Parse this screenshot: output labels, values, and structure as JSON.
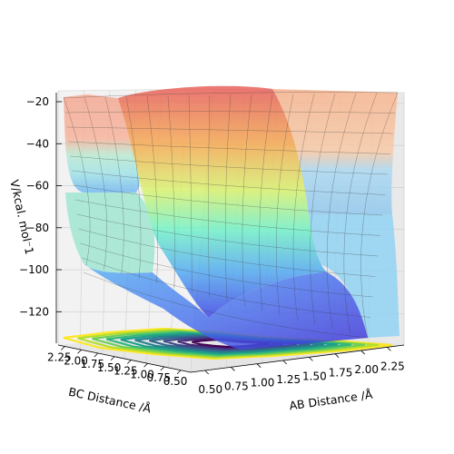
{
  "chart_data": {
    "type": "surface3d",
    "title": "",
    "xlabel": "AB Distance /Å",
    "ylabel": "BC Distance /Å",
    "zlabel": "V/kcal. mol⁻1",
    "x_ticks": [
      "0.50",
      "0.75",
      "1.00",
      "1.25",
      "1.50",
      "1.75",
      "2.00",
      "2.25"
    ],
    "y_ticks": [
      "2.25",
      "2.00",
      "1.75",
      "1.50",
      "1.25",
      "1.00",
      "0.75",
      "0.50"
    ],
    "z_ticks": [
      "−20",
      "−40",
      "−60",
      "−80",
      "−100",
      "−120"
    ],
    "z_values": [
      -20,
      -40,
      -60,
      -80,
      -100,
      -120
    ],
    "xlim": [
      0.5,
      2.25
    ],
    "ylim": [
      0.5,
      2.25
    ],
    "zlim": [
      -135,
      -20
    ],
    "colormap_surface": "jet (translucent)",
    "colormap_contour": "viridis",
    "grid": true
  }
}
